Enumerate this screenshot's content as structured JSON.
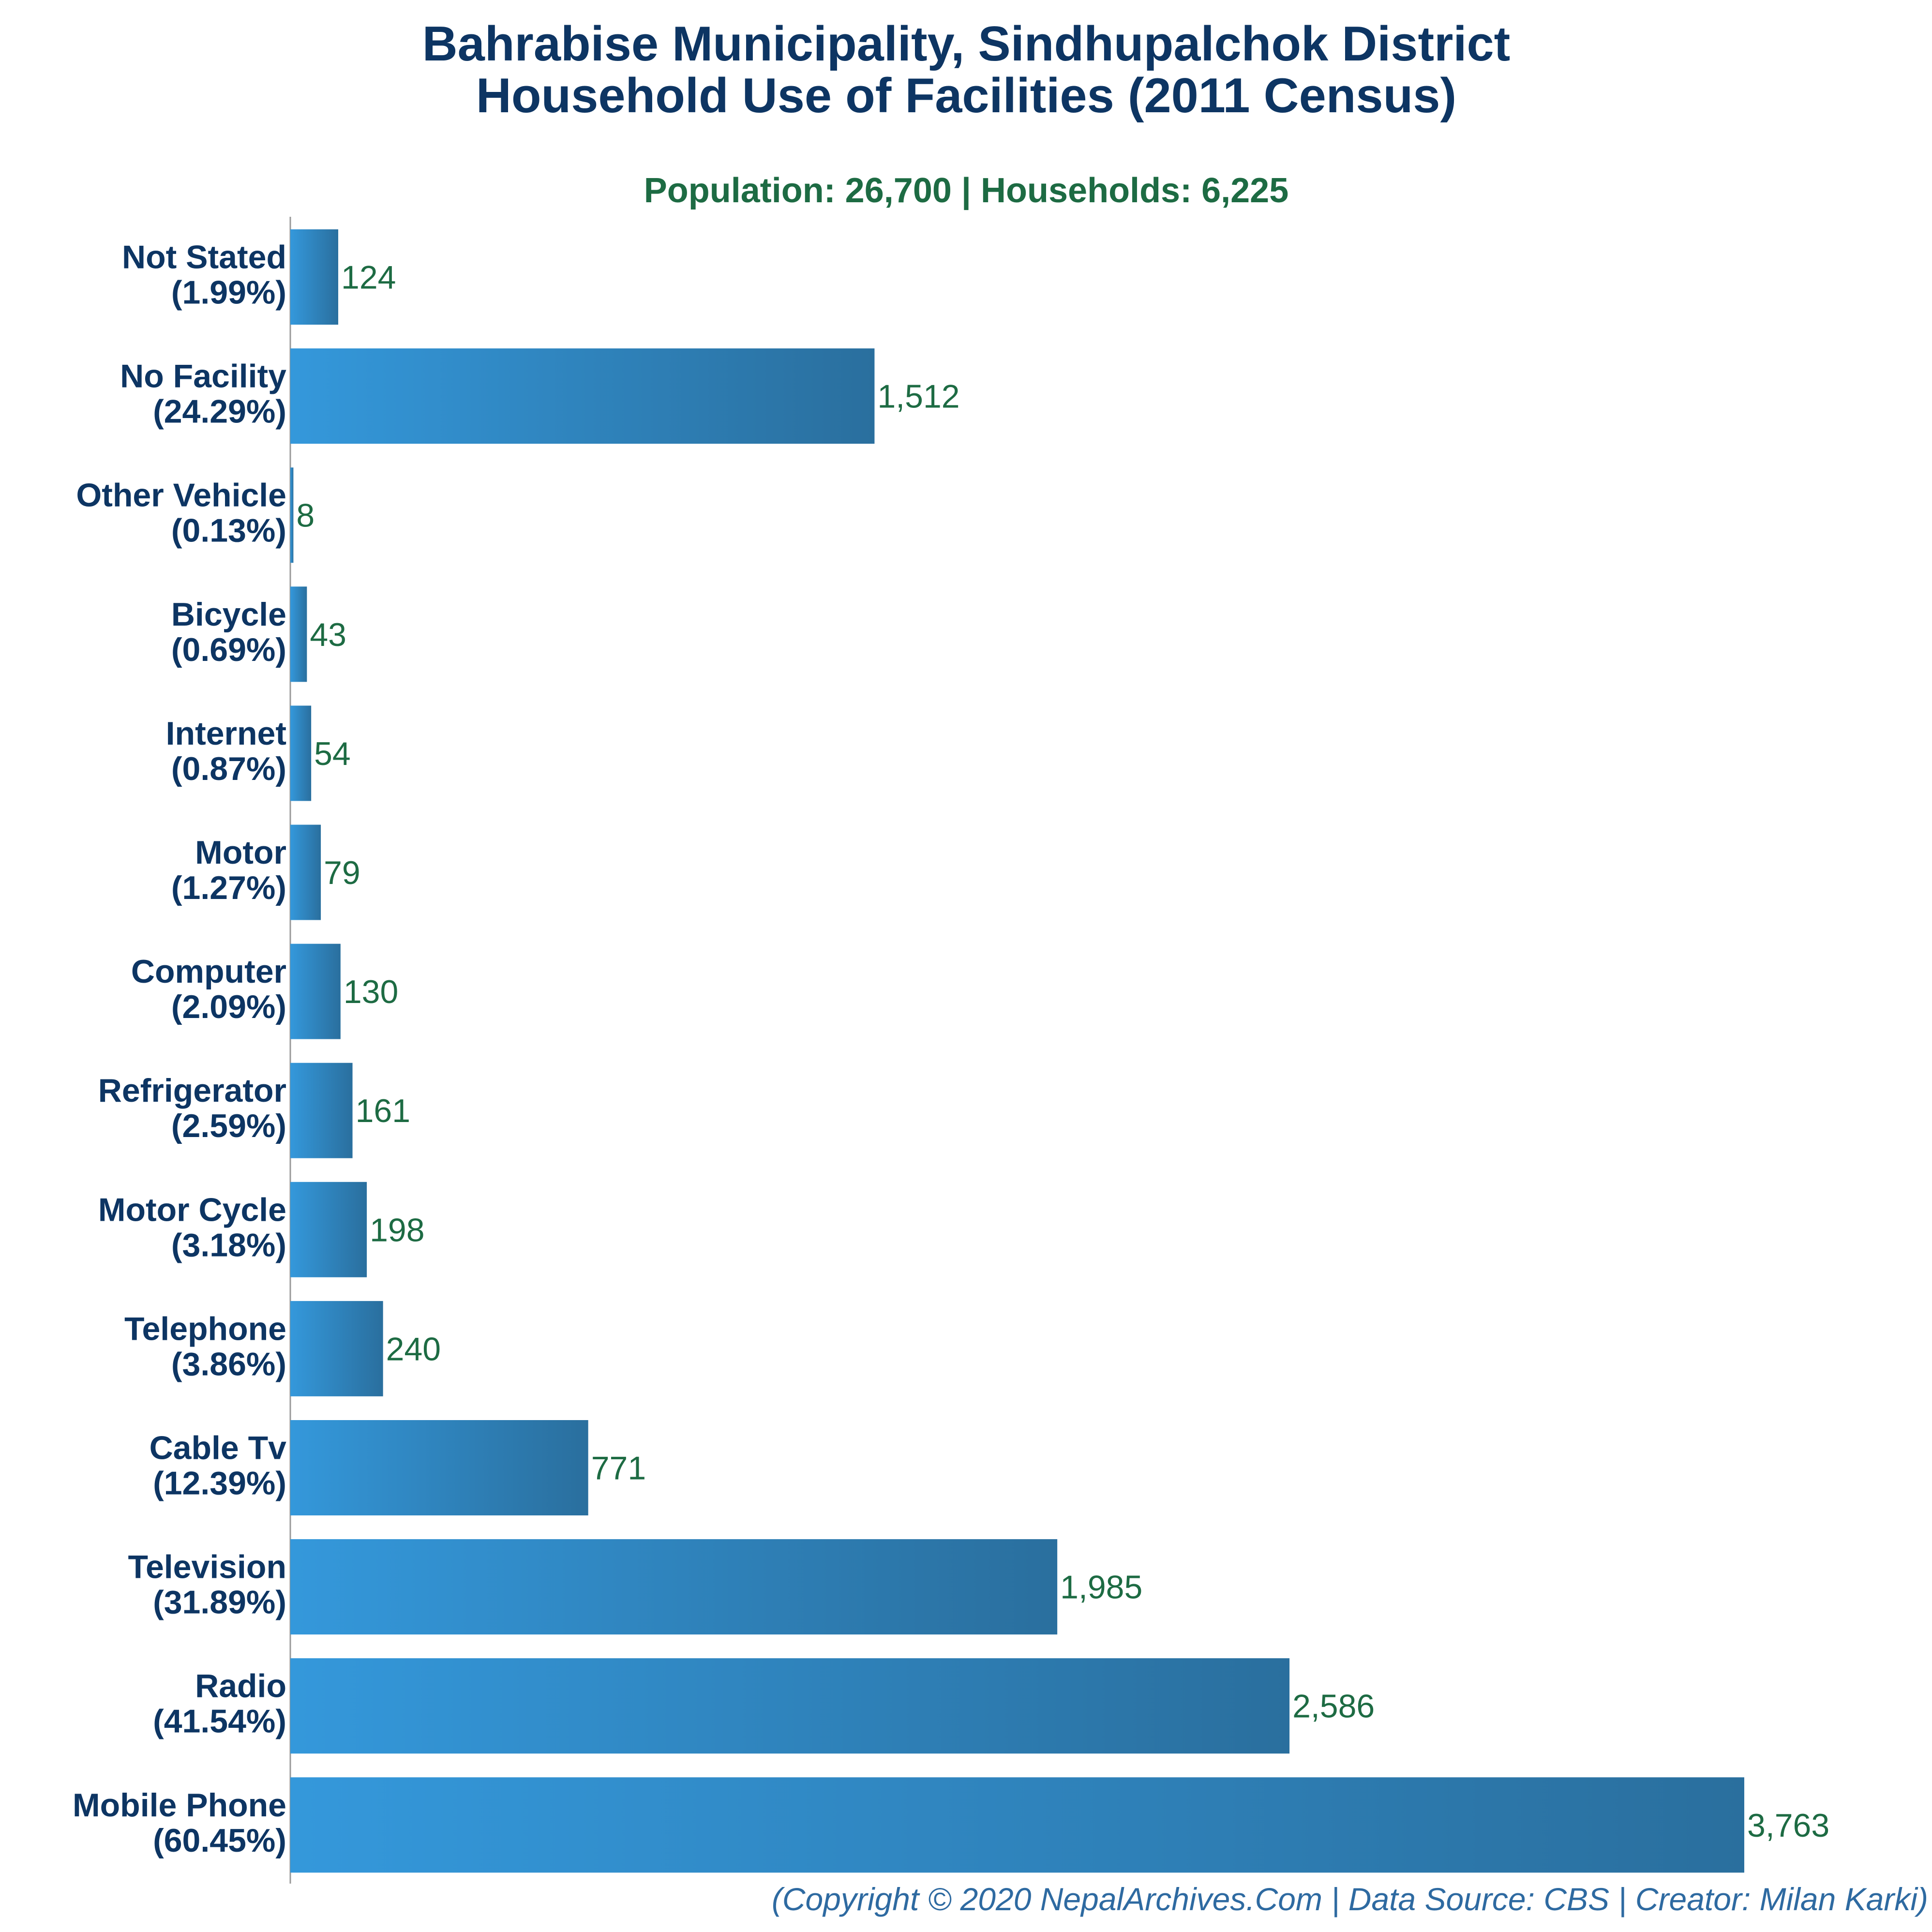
{
  "chart_data": {
    "type": "bar",
    "orientation": "horizontal",
    "title": "Bahrabise Municipality, Sindhupalchok District",
    "title_line2": "Household Use of Facilities (2011 Census)",
    "subtitle": "Population: 26,700 | Households: 6,225",
    "categories": [
      {
        "name": "Not Stated",
        "pct": "(1.99%)"
      },
      {
        "name": "No Facility",
        "pct": "(24.29%)"
      },
      {
        "name": "Other Vehicle",
        "pct": "(0.13%)"
      },
      {
        "name": "Bicycle",
        "pct": "(0.69%)"
      },
      {
        "name": "Internet",
        "pct": "(0.87%)"
      },
      {
        "name": "Motor",
        "pct": "(1.27%)"
      },
      {
        "name": "Computer",
        "pct": "(2.09%)"
      },
      {
        "name": "Refrigerator",
        "pct": "(2.59%)"
      },
      {
        "name": "Motor Cycle",
        "pct": "(3.18%)"
      },
      {
        "name": "Telephone",
        "pct": "(3.86%)"
      },
      {
        "name": "Cable Tv",
        "pct": "(12.39%)"
      },
      {
        "name": "Television",
        "pct": "(31.89%)"
      },
      {
        "name": "Radio",
        "pct": "(41.54%)"
      },
      {
        "name": "Mobile Phone",
        "pct": "(60.45%)"
      }
    ],
    "values": [
      124,
      1512,
      8,
      43,
      54,
      79,
      130,
      161,
      198,
      240,
      771,
      1985,
      2586,
      3763
    ],
    "value_labels": [
      "124",
      "1,512",
      "8",
      "43",
      "54",
      "79",
      "130",
      "161",
      "198",
      "240",
      "771",
      "1,985",
      "2,586",
      "3,763"
    ],
    "xlim": [
      0,
      3763
    ],
    "grid": false,
    "legend": "none",
    "colors": {
      "bar_start": "#3498db",
      "bar_end": "#2a6f9e",
      "title": "#0d3563",
      "subtitle": "#1d6b43",
      "value_label": "#1d6b43",
      "footer": "#2e6aa1",
      "axis": "#999999"
    }
  },
  "footer": "(Copyright © 2020 NepalArchives.Com | Data Source: CBS | Creator: Milan Karki)"
}
